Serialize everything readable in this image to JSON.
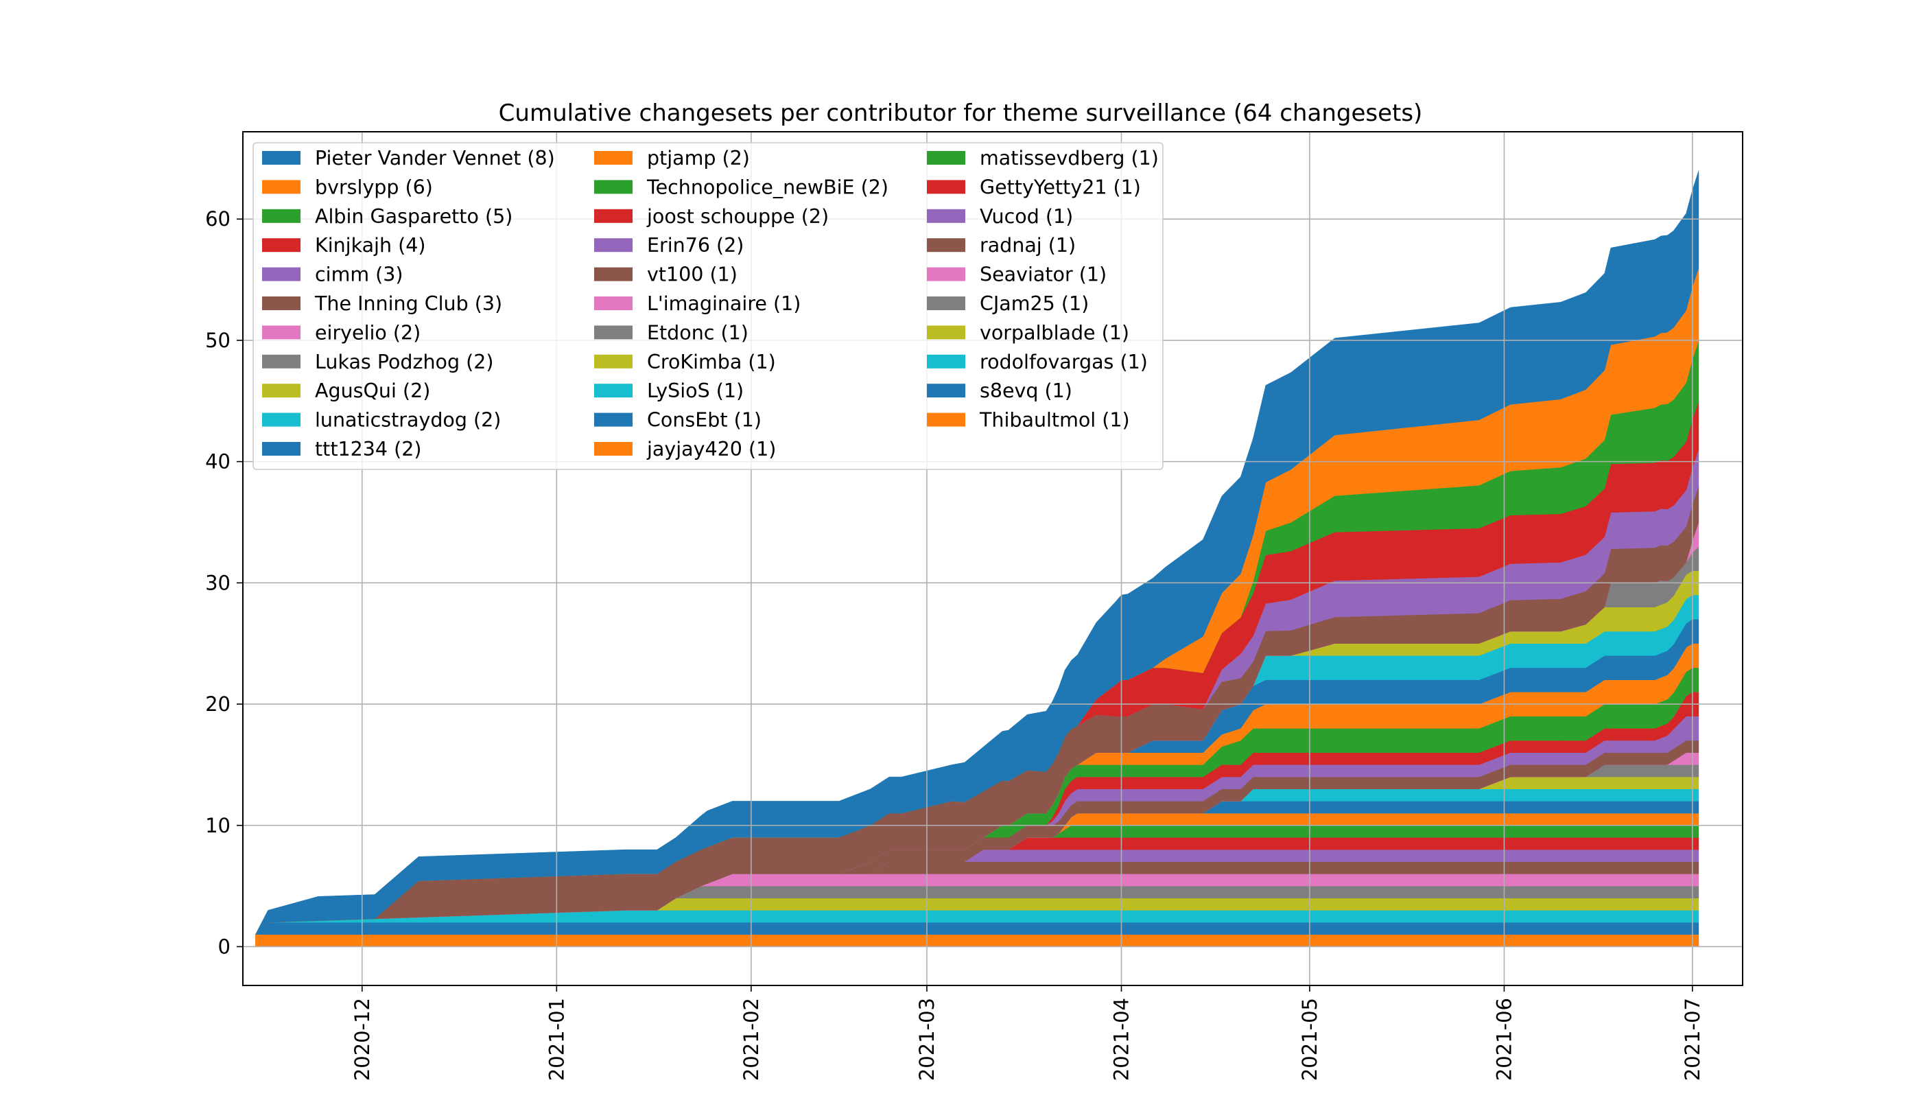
{
  "chart_data": {
    "type": "area",
    "stacked": true,
    "title": "Cumulative changesets per contributor for theme surveillance (64 changesets)",
    "xlabel": "",
    "ylabel": "",
    "x_axis_type": "date",
    "xlim": [
      "2020-11-12",
      "2021-07-09"
    ],
    "ylim": [
      -3.2,
      67.2
    ],
    "grid": true,
    "legend_position": "upper-left",
    "legend_columns": 3,
    "x_ticks": [
      "2020-12",
      "2021-01",
      "2021-02",
      "2021-03",
      "2021-04",
      "2021-05",
      "2021-06",
      "2021-07"
    ],
    "y_ticks": [
      "0",
      "10",
      "20",
      "30",
      "40",
      "50",
      "60"
    ],
    "x_tick_dates": [
      "2020-12-01",
      "2021-01-01",
      "2021-02-01",
      "2021-03-01",
      "2021-04-01",
      "2021-05-01",
      "2021-06-01",
      "2021-07-01"
    ],
    "y_tick_values": [
      0,
      10,
      20,
      30,
      40,
      50,
      60
    ],
    "series": [
      {
        "name": "Thibaultmol (1)",
        "color": "#ff7f0e",
        "points": [
          [
            "2020-11-14",
            1
          ],
          [
            "2021-07-02",
            1
          ]
        ]
      },
      {
        "name": "s8evq (1)",
        "color": "#1f77b4",
        "points": [
          [
            "2020-11-16",
            1
          ],
          [
            "2021-07-02",
            1
          ]
        ]
      },
      {
        "name": "rodolfovargas (1)",
        "color": "#17becf",
        "points": [
          [
            "2020-11-16",
            0
          ],
          [
            "2021-01-12",
            1
          ],
          [
            "2021-07-02",
            1
          ]
        ]
      },
      {
        "name": "vorpalblade (1)",
        "color": "#bcbd22",
        "points": [
          [
            "2020-11-16",
            0
          ],
          [
            "2021-01-17",
            0
          ],
          [
            "2021-01-20",
            1
          ],
          [
            "2021-07-02",
            1
          ]
        ]
      },
      {
        "name": "CJam25 (1)",
        "color": "#7f7f7f",
        "points": [
          [
            "2020-11-16",
            0
          ],
          [
            "2021-01-20",
            0
          ],
          [
            "2021-01-24",
            1
          ],
          [
            "2021-07-02",
            1
          ]
        ]
      },
      {
        "name": "Seaviator (1)",
        "color": "#e377c2",
        "points": [
          [
            "2020-11-16",
            0
          ],
          [
            "2021-01-24",
            0
          ],
          [
            "2021-01-29",
            1
          ],
          [
            "2021-07-02",
            1
          ]
        ]
      },
      {
        "name": "radnaj (1)",
        "color": "#8c564b",
        "points": [
          [
            "2020-11-16",
            0
          ],
          [
            "2021-02-20",
            0
          ],
          [
            "2021-02-23",
            1
          ],
          [
            "2021-07-02",
            1
          ]
        ]
      },
      {
        "name": "Vucod (1)",
        "color": "#9467bd",
        "points": [
          [
            "2020-11-16",
            0
          ],
          [
            "2021-03-07",
            0
          ],
          [
            "2021-03-10",
            1
          ],
          [
            "2021-07-02",
            1
          ]
        ]
      },
      {
        "name": "GettyYetty21 (1)",
        "color": "#d62728",
        "points": [
          [
            "2020-11-16",
            0
          ],
          [
            "2021-03-14",
            0
          ],
          [
            "2021-03-17",
            1
          ],
          [
            "2021-07-02",
            1
          ]
        ]
      },
      {
        "name": "matissevdberg (1)",
        "color": "#2ca02c",
        "points": [
          [
            "2020-11-16",
            0
          ],
          [
            "2021-03-21",
            0
          ],
          [
            "2021-03-24",
            1
          ],
          [
            "2021-07-02",
            1
          ]
        ]
      },
      {
        "name": "jayjay420 (1)",
        "color": "#ff7f0e",
        "points": [
          [
            "2020-11-16",
            0
          ],
          [
            "2021-03-22",
            0
          ],
          [
            "2021-03-25",
            1
          ],
          [
            "2021-07-02",
            1
          ]
        ]
      },
      {
        "name": "ConsEbt (1)",
        "color": "#1f77b4",
        "points": [
          [
            "2020-11-16",
            0
          ],
          [
            "2021-04-14",
            0
          ],
          [
            "2021-04-17",
            1
          ],
          [
            "2021-07-02",
            1
          ]
        ]
      },
      {
        "name": "LySioS (1)",
        "color": "#17becf",
        "points": [
          [
            "2020-11-16",
            0
          ],
          [
            "2021-04-20",
            0
          ],
          [
            "2021-04-22",
            1
          ],
          [
            "2021-07-02",
            1
          ]
        ]
      },
      {
        "name": "CroKimba (1)",
        "color": "#bcbd22",
        "points": [
          [
            "2020-11-16",
            0
          ],
          [
            "2021-05-28",
            0
          ],
          [
            "2021-06-02",
            1
          ],
          [
            "2021-07-02",
            1
          ]
        ]
      },
      {
        "name": "Etdonc (1)",
        "color": "#7f7f7f",
        "points": [
          [
            "2020-11-16",
            0
          ],
          [
            "2021-06-14",
            0
          ],
          [
            "2021-06-17",
            1
          ],
          [
            "2021-07-02",
            1
          ]
        ]
      },
      {
        "name": "L'imaginaire (1)",
        "color": "#e377c2",
        "points": [
          [
            "2020-11-16",
            0
          ],
          [
            "2021-06-27",
            0
          ],
          [
            "2021-06-30",
            1
          ],
          [
            "2021-07-02",
            1
          ]
        ]
      },
      {
        "name": "vt100 (1)",
        "color": "#8c564b",
        "points": [
          [
            "2020-11-16",
            0
          ],
          [
            "2021-02-15",
            0
          ],
          [
            "2021-02-20",
            1
          ],
          [
            "2021-07-02",
            1
          ]
        ]
      },
      {
        "name": "Erin76 (2)",
        "color": "#9467bd",
        "points": [
          [
            "2020-11-16",
            0
          ],
          [
            "2021-03-20",
            0
          ],
          [
            "2021-03-23",
            1
          ],
          [
            "2021-06-25",
            1
          ],
          [
            "2021-06-30",
            2
          ],
          [
            "2021-07-02",
            2
          ]
        ]
      },
      {
        "name": "joost schouppe (2)",
        "color": "#d62728",
        "points": [
          [
            "2020-11-16",
            0
          ],
          [
            "2021-03-20",
            0
          ],
          [
            "2021-03-23",
            1
          ],
          [
            "2021-06-28",
            1
          ],
          [
            "2021-07-01",
            2
          ],
          [
            "2021-07-02",
            2
          ]
        ]
      },
      {
        "name": "Technopolice_newBiE (2)",
        "color": "#2ca02c",
        "points": [
          [
            "2020-11-16",
            0
          ],
          [
            "2021-03-10",
            0
          ],
          [
            "2021-03-13",
            1
          ],
          [
            "2021-04-14",
            1
          ],
          [
            "2021-04-20",
            2
          ],
          [
            "2021-07-02",
            2
          ]
        ]
      },
      {
        "name": "ptjamp (2)",
        "color": "#ff7f0e",
        "points": [
          [
            "2020-11-16",
            0
          ],
          [
            "2021-03-25",
            0
          ],
          [
            "2021-03-28",
            1
          ],
          [
            "2021-04-20",
            1
          ],
          [
            "2021-04-24",
            2
          ],
          [
            "2021-07-02",
            2
          ]
        ]
      },
      {
        "name": "ttt1234 (2)",
        "color": "#1f77b4",
        "points": [
          [
            "2020-11-16",
            0
          ],
          [
            "2021-04-02",
            0
          ],
          [
            "2021-04-06",
            1
          ],
          [
            "2021-04-14",
            1
          ],
          [
            "2021-04-17",
            2
          ],
          [
            "2021-07-02",
            2
          ]
        ]
      },
      {
        "name": "lunaticstraydog (2)",
        "color": "#17becf",
        "points": [
          [
            "2020-11-16",
            0
          ],
          [
            "2021-04-22",
            0
          ],
          [
            "2021-04-24",
            2
          ],
          [
            "2021-07-02",
            2
          ]
        ]
      },
      {
        "name": "AgusQui (2)",
        "color": "#bcbd22",
        "points": [
          [
            "2020-11-16",
            0
          ],
          [
            "2021-04-28",
            0
          ],
          [
            "2021-05-05",
            1
          ],
          [
            "2021-06-10",
            1
          ],
          [
            "2021-06-17",
            2
          ],
          [
            "2021-07-02",
            2
          ]
        ]
      },
      {
        "name": "Lukas Podzhog (2)",
        "color": "#7f7f7f",
        "points": [
          [
            "2020-11-16",
            0
          ],
          [
            "2021-06-17",
            0
          ],
          [
            "2021-06-18",
            2
          ],
          [
            "2021-06-26",
            2
          ],
          [
            "2021-06-30",
            1
          ],
          [
            "2021-07-02",
            2
          ]
        ]
      },
      {
        "name": "eiryelio (2)",
        "color": "#e377c2",
        "points": [
          [
            "2020-11-16",
            0
          ],
          [
            "2021-06-30",
            0
          ],
          [
            "2021-07-02",
            2
          ]
        ]
      },
      {
        "name": "The Inning Club (3)",
        "color": "#8c564b",
        "points": [
          [
            "2020-11-16",
            0
          ],
          [
            "2020-12-03",
            0
          ],
          [
            "2020-12-10",
            3
          ],
          [
            "2021-02-25",
            3
          ],
          [
            "2021-03-05",
            4
          ],
          [
            "2021-03-31",
            3
          ],
          [
            "2021-04-08",
            3
          ],
          [
            "2021-04-22",
            2
          ],
          [
            "2021-07-02",
            3
          ]
        ]
      },
      {
        "name": "cimm (3)",
        "color": "#9467bd",
        "points": [
          [
            "2020-11-16",
            0
          ],
          [
            "2021-04-14",
            0
          ],
          [
            "2021-04-20",
            2
          ],
          [
            "2021-05-05",
            3
          ],
          [
            "2021-07-02",
            3
          ]
        ]
      },
      {
        "name": "Kinjkajh (4)",
        "color": "#d62728",
        "points": [
          [
            "2020-11-16",
            0
          ],
          [
            "2021-03-25",
            0
          ],
          [
            "2021-04-01",
            3
          ],
          [
            "2021-04-20",
            3
          ],
          [
            "2021-04-24",
            4
          ],
          [
            "2021-07-02",
            4
          ]
        ]
      },
      {
        "name": "Albin Gasparetto (5)",
        "color": "#2ca02c",
        "points": [
          [
            "2020-11-16",
            0
          ],
          [
            "2021-04-20",
            0
          ],
          [
            "2021-04-24",
            2
          ],
          [
            "2021-05-05",
            3
          ],
          [
            "2021-06-17",
            4
          ],
          [
            "2021-07-02",
            5
          ]
        ]
      },
      {
        "name": "bvrslypp (6)",
        "color": "#ff7f0e",
        "points": [
          [
            "2020-11-16",
            0
          ],
          [
            "2021-04-06",
            0
          ],
          [
            "2021-04-14",
            3
          ],
          [
            "2021-04-24",
            4
          ],
          [
            "2021-05-05",
            5
          ],
          [
            "2021-07-02",
            6
          ]
        ]
      },
      {
        "name": "Pieter Vander Vennet (8)",
        "color": "#1f77b4",
        "points": [
          [
            "2020-11-14",
            0
          ],
          [
            "2020-11-16",
            1
          ],
          [
            "2020-11-24",
            2
          ],
          [
            "2021-01-20",
            2
          ],
          [
            "2021-01-25",
            3
          ],
          [
            "2021-03-05",
            3
          ],
          [
            "2021-03-20",
            5
          ],
          [
            "2021-04-01",
            7
          ],
          [
            "2021-04-14",
            8
          ],
          [
            "2021-07-02",
            8
          ]
        ]
      }
    ],
    "legend": [
      {
        "label": "Pieter Vander Vennet (8)",
        "color": "#1f77b4"
      },
      {
        "label": "bvrslypp (6)",
        "color": "#ff7f0e"
      },
      {
        "label": "Albin Gasparetto (5)",
        "color": "#2ca02c"
      },
      {
        "label": "Kinjkajh (4)",
        "color": "#d62728"
      },
      {
        "label": "cimm (3)",
        "color": "#9467bd"
      },
      {
        "label": "The Inning Club (3)",
        "color": "#8c564b"
      },
      {
        "label": "eiryelio (2)",
        "color": "#e377c2"
      },
      {
        "label": "Lukas Podzhog (2)",
        "color": "#7f7f7f"
      },
      {
        "label": "AgusQui (2)",
        "color": "#bcbd22"
      },
      {
        "label": "lunaticstraydog (2)",
        "color": "#17becf"
      },
      {
        "label": "ttt1234 (2)",
        "color": "#1f77b4"
      },
      {
        "label": "ptjamp (2)",
        "color": "#ff7f0e"
      },
      {
        "label": "Technopolice_newBiE (2)",
        "color": "#2ca02c"
      },
      {
        "label": "joost schouppe (2)",
        "color": "#d62728"
      },
      {
        "label": "Erin76 (2)",
        "color": "#9467bd"
      },
      {
        "label": "vt100 (1)",
        "color": "#8c564b"
      },
      {
        "label": "L'imaginaire (1)",
        "color": "#e377c2"
      },
      {
        "label": "Etdonc (1)",
        "color": "#7f7f7f"
      },
      {
        "label": "CroKimba (1)",
        "color": "#bcbd22"
      },
      {
        "label": "LySioS (1)",
        "color": "#17becf"
      },
      {
        "label": "ConsEbt (1)",
        "color": "#1f77b4"
      },
      {
        "label": "jayjay420 (1)",
        "color": "#ff7f0e"
      },
      {
        "label": "matissevdberg (1)",
        "color": "#2ca02c"
      },
      {
        "label": "GettyYetty21 (1)",
        "color": "#d62728"
      },
      {
        "label": "Vucod (1)",
        "color": "#9467bd"
      },
      {
        "label": "radnaj (1)",
        "color": "#8c564b"
      },
      {
        "label": "Seaviator (1)",
        "color": "#e377c2"
      },
      {
        "label": "CJam25 (1)",
        "color": "#7f7f7f"
      },
      {
        "label": "vorpalblade (1)",
        "color": "#bcbd22"
      },
      {
        "label": "rodolfovargas (1)",
        "color": "#17becf"
      },
      {
        "label": "s8evq (1)",
        "color": "#1f77b4"
      },
      {
        "label": "Thibaultmol (1)",
        "color": "#ff7f0e"
      }
    ]
  }
}
